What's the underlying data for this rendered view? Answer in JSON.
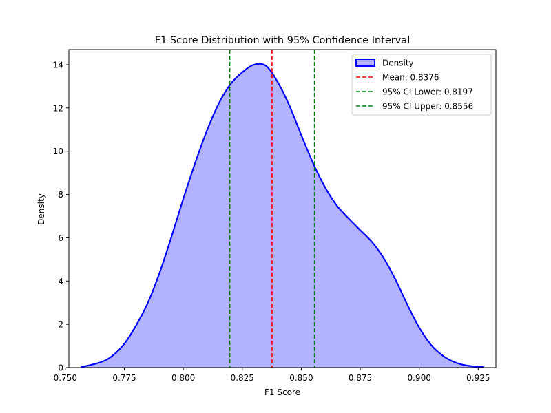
{
  "chart_data": {
    "type": "area",
    "title": "F1 Score Distribution with 95% Confidence Interval",
    "xlabel": "F1 Score",
    "ylabel": "Density",
    "xlim": [
      0.7515,
      0.9325
    ],
    "ylim": [
      0,
      14.7
    ],
    "x_ticks": [
      {
        "value": 0.75,
        "label": "0.750"
      },
      {
        "value": 0.775,
        "label": "0.775"
      },
      {
        "value": 0.8,
        "label": "0.800"
      },
      {
        "value": 0.825,
        "label": "0.825"
      },
      {
        "value": 0.85,
        "label": "0.850"
      },
      {
        "value": 0.875,
        "label": "0.875"
      },
      {
        "value": 0.9,
        "label": "0.900"
      },
      {
        "value": 0.925,
        "label": "0.925"
      }
    ],
    "y_ticks": [
      {
        "value": 0,
        "label": "0"
      },
      {
        "value": 2,
        "label": "2"
      },
      {
        "value": 4,
        "label": "4"
      },
      {
        "value": 6,
        "label": "6"
      },
      {
        "value": 8,
        "label": "8"
      },
      {
        "value": 10,
        "label": "10"
      },
      {
        "value": 12,
        "label": "12"
      },
      {
        "value": 14,
        "label": "14"
      }
    ],
    "grid": false,
    "legend_position": "top-right",
    "series": [
      {
        "name": "Density",
        "kind": "density-area",
        "line_color": "#0000ff",
        "fill_color": "#b2b2ff",
        "points": [
          [
            0.7566,
            0.02
          ],
          [
            0.765,
            0.25
          ],
          [
            0.77,
            0.55
          ],
          [
            0.775,
            1.1
          ],
          [
            0.78,
            1.95
          ],
          [
            0.785,
            3.0
          ],
          [
            0.79,
            4.4
          ],
          [
            0.795,
            6.05
          ],
          [
            0.8,
            7.8
          ],
          [
            0.805,
            9.45
          ],
          [
            0.81,
            10.95
          ],
          [
            0.815,
            12.2
          ],
          [
            0.82,
            13.1
          ],
          [
            0.825,
            13.65
          ],
          [
            0.83,
            14.0
          ],
          [
            0.835,
            13.95
          ],
          [
            0.84,
            13.2
          ],
          [
            0.845,
            12.1
          ],
          [
            0.85,
            10.75
          ],
          [
            0.855,
            9.45
          ],
          [
            0.86,
            8.35
          ],
          [
            0.865,
            7.5
          ],
          [
            0.87,
            6.9
          ],
          [
            0.875,
            6.35
          ],
          [
            0.88,
            5.8
          ],
          [
            0.885,
            5.05
          ],
          [
            0.89,
            4.05
          ],
          [
            0.895,
            2.9
          ],
          [
            0.9,
            1.85
          ],
          [
            0.905,
            1.05
          ],
          [
            0.91,
            0.55
          ],
          [
            0.915,
            0.25
          ],
          [
            0.92,
            0.1
          ],
          [
            0.9274,
            0.02
          ]
        ]
      },
      {
        "name": "Mean: 0.8376",
        "kind": "vline",
        "x": 0.8376,
        "color": "#ff0000"
      },
      {
        "name": "95% CI Lower: 0.8197",
        "kind": "vline",
        "x": 0.8197,
        "color": "#008000"
      },
      {
        "name": "95% CI Upper: 0.8556",
        "kind": "vline",
        "x": 0.8556,
        "color": "#008000"
      }
    ]
  }
}
